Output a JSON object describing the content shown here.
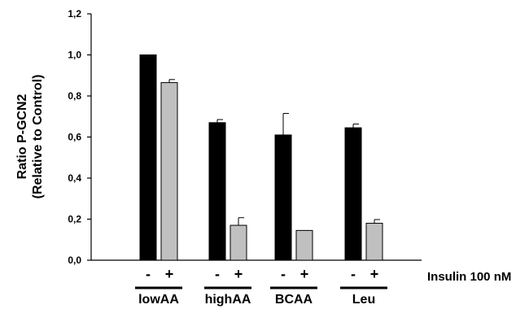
{
  "chart_data": {
    "type": "bar",
    "categories": [
      "lowAA",
      "highAA",
      "BCAA",
      "Leu"
    ],
    "series": [
      {
        "key": "minus",
        "color": "#000000",
        "values": [
          1.0,
          0.67,
          0.61,
          0.645
        ],
        "errors": [
          0,
          0.015,
          0.105,
          0.018
        ]
      },
      {
        "key": "plus",
        "color": "#c0c0c0",
        "values": [
          0.865,
          0.17,
          0.145,
          0.18
        ],
        "errors": [
          0.015,
          0.037,
          0,
          0.018
        ]
      }
    ],
    "ylim": [
      0,
      1.2
    ],
    "yticks": [
      "0,0",
      "0,2",
      "0,4",
      "0,6",
      "0,8",
      "1,0",
      "1,2"
    ],
    "ylabel_line1": "Ratio P-GCN2",
    "ylabel_line2": "(Relative to Control)",
    "condition_minus": "-",
    "condition_plus": "+",
    "insulin_label": "Insulin 100 nM",
    "grid": false,
    "legend": "none"
  }
}
